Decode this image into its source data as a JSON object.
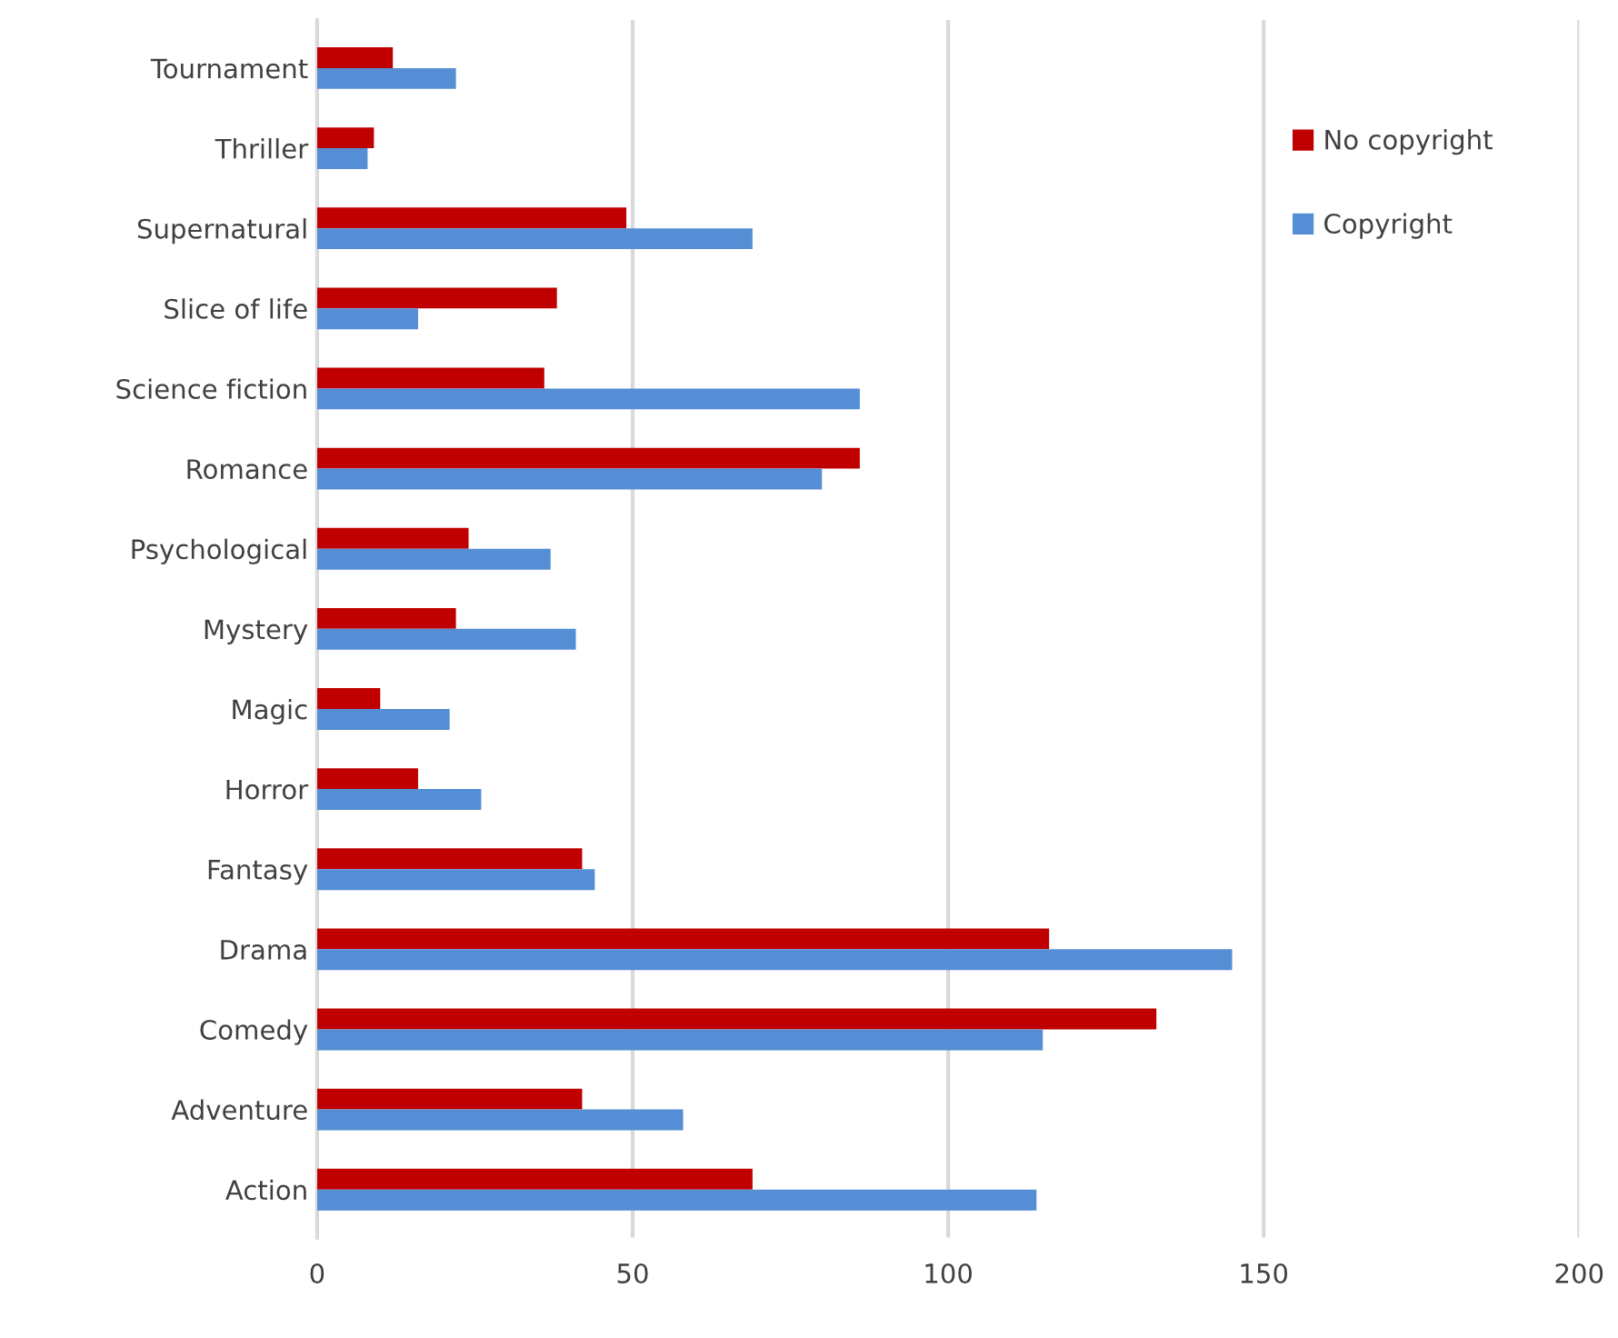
{
  "chart_data": {
    "type": "bar",
    "orientation": "horizontal",
    "categories": [
      "Tournament",
      "Thriller",
      "Supernatural",
      "Slice of life",
      "Science fiction",
      "Romance",
      "Psychological",
      "Mystery",
      "Magic",
      "Horror",
      "Fantasy",
      "Drama",
      "Comedy",
      "Adventure",
      "Action"
    ],
    "series": [
      {
        "name": "No copyright",
        "color": "#c00000",
        "values": [
          12,
          9,
          49,
          38,
          36,
          86,
          24,
          22,
          10,
          16,
          42,
          116,
          133,
          42,
          69
        ]
      },
      {
        "name": "Copyright",
        "color": "#558ed5",
        "values": [
          22,
          8,
          69,
          16,
          86,
          80,
          37,
          41,
          21,
          26,
          44,
          145,
          115,
          58,
          114
        ]
      }
    ],
    "xlim": [
      0,
      200
    ],
    "xticks": [
      0,
      50,
      100,
      150,
      200
    ],
    "grid": "x",
    "legend": "top right"
  }
}
